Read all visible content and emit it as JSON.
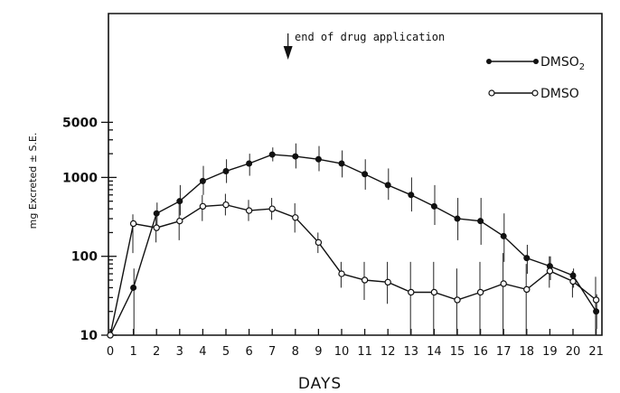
{
  "chart_data": {
    "type": "line",
    "title": "",
    "xlabel": "DAYS",
    "ylabel": "mg Excreted ± S.E.",
    "y_scale": "log",
    "ylim": [
      10,
      10000
    ],
    "xlim": [
      0,
      21
    ],
    "x_ticks": [
      0,
      1,
      2,
      3,
      4,
      5,
      6,
      7,
      8,
      9,
      10,
      11,
      12,
      13,
      14,
      15,
      16,
      17,
      18,
      19,
      20,
      21
    ],
    "x_tick_labels": [
      "0",
      "1",
      "2",
      "3",
      "4",
      "5",
      "6",
      "7",
      "8",
      "9",
      "10",
      "11",
      "12",
      "13",
      "14",
      "15",
      "16",
      "17",
      "18",
      "19",
      "20",
      "21"
    ],
    "y_ticks": [
      10,
      100,
      1000,
      5000
    ],
    "y_tick_labels": [
      "10",
      "100",
      "1000",
      "5000"
    ],
    "grid": false,
    "legend_position": "top-right",
    "annotation": {
      "text": "end of drug application",
      "x": 7.8
    },
    "series": [
      {
        "name": "DMSO2",
        "name_main": "DMSO",
        "name_sub": "2",
        "marker": "filled-circle",
        "color": "#111111",
        "x": [
          0,
          1,
          2,
          3,
          4,
          5,
          6,
          7,
          8,
          9,
          10,
          11,
          12,
          13,
          14,
          15,
          16,
          17,
          18,
          19,
          20,
          21
        ],
        "y": [
          10,
          40,
          350,
          500,
          900,
          1200,
          1500,
          1950,
          1850,
          1700,
          1500,
          1100,
          800,
          600,
          430,
          300,
          280,
          180,
          95,
          75,
          57,
          20
        ],
        "err_low": [
          10,
          10,
          250,
          330,
          600,
          850,
          1050,
          1600,
          1300,
          1200,
          1000,
          700,
          520,
          370,
          250,
          160,
          140,
          85,
          60,
          50,
          40,
          12
        ],
        "err_high": [
          10,
          70,
          480,
          800,
          1400,
          1700,
          2000,
          2400,
          2700,
          2500,
          2200,
          1700,
          1300,
          1000,
          800,
          550,
          550,
          350,
          140,
          100,
          70,
          33
        ]
      },
      {
        "name": "DMSO",
        "marker": "open-circle",
        "color": "#111111",
        "x": [
          0,
          1,
          2,
          3,
          4,
          5,
          6,
          7,
          8,
          9,
          10,
          11,
          12,
          13,
          14,
          15,
          16,
          17,
          18,
          19,
          20,
          21
        ],
        "y": [
          10,
          260,
          230,
          280,
          430,
          450,
          380,
          400,
          310,
          150,
          60,
          50,
          47,
          35,
          35,
          28,
          35,
          45,
          38,
          65,
          48,
          28
        ],
        "err_low": [
          10,
          110,
          150,
          160,
          280,
          330,
          280,
          290,
          200,
          110,
          40,
          28,
          25,
          10,
          10,
          10,
          10,
          10,
          10,
          40,
          30,
          10
        ],
        "err_high": [
          10,
          340,
          320,
          470,
          600,
          620,
          520,
          550,
          470,
          200,
          85,
          85,
          85,
          85,
          85,
          70,
          85,
          110,
          80,
          100,
          65,
          55
        ]
      }
    ]
  }
}
